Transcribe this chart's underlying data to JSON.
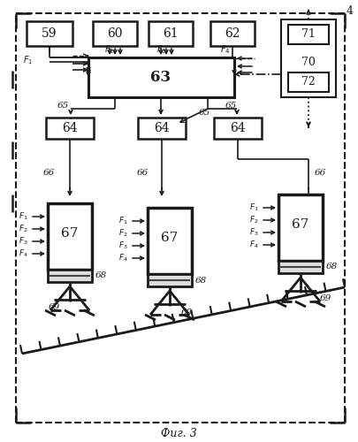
{
  "title": "Фиг. 3",
  "background": "#ffffff",
  "line_color": "#1a1a1a",
  "figsize": [
    4.05,
    5.0
  ],
  "dpi": 100
}
